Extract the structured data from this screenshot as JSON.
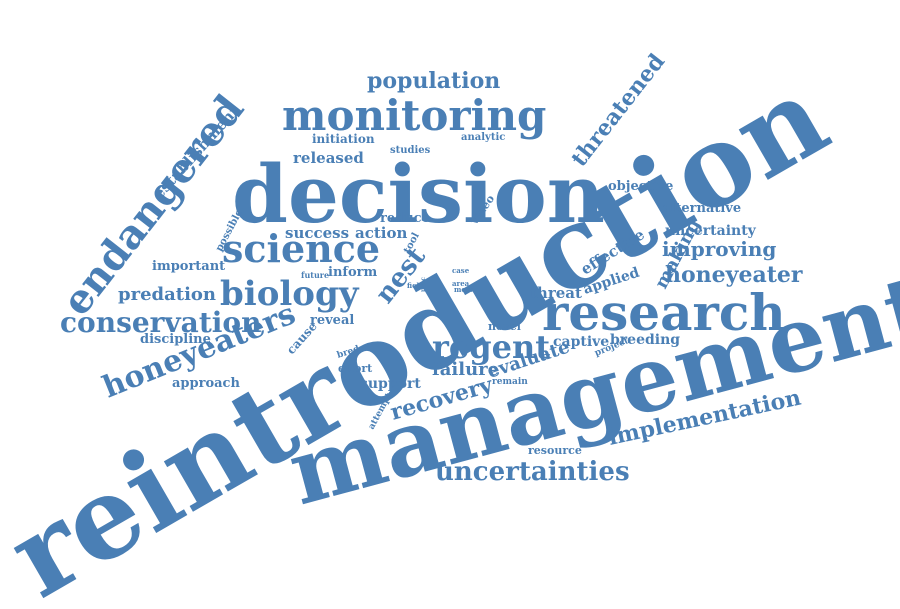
{
  "word_color": "#4a7fb5",
  "background_color": "#ffffff",
  "words": [
    "reintroduction",
    "management",
    "decision",
    "research",
    "monitoring",
    "science",
    "biology",
    "endangered",
    "conservation",
    "honeyeaters",
    "regent",
    "uncertainties",
    "recovery",
    "implementation",
    "honeyeater",
    "threatened",
    "population",
    "failure",
    "evaluate",
    "predation",
    "nest",
    "establishment",
    "improving",
    "making",
    "released",
    "success",
    "action",
    "uncertainty",
    "alternative",
    "effective",
    "applied",
    "threat",
    "captive",
    "breeding",
    "objective",
    "support",
    "inform",
    "reduce",
    "approach",
    "discipline",
    "important",
    "reveal",
    "cause",
    "initiation",
    "studies",
    "analytic",
    "video",
    "tool",
    "possible",
    "future",
    "effort",
    "bred",
    "attempt",
    "resource",
    "novel",
    "project",
    "remain",
    "case",
    "area",
    "more",
    "field",
    "prac"
  ]
}
